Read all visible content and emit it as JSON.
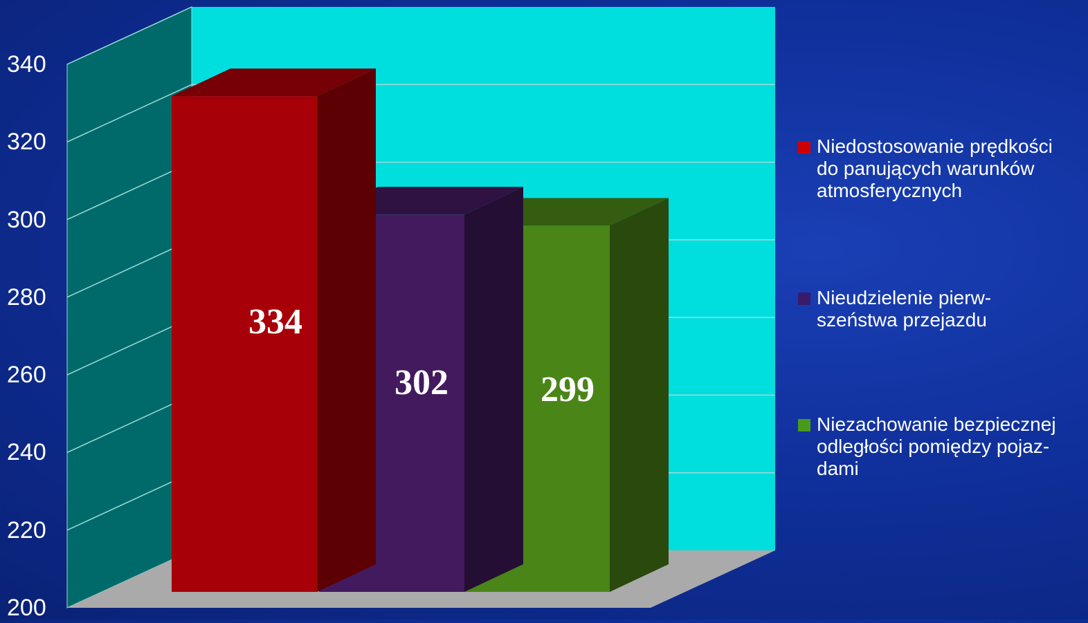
{
  "chart_data": {
    "type": "bar",
    "categories": [
      "Niedostosowanie prędkości do panujących warunków atmosferycznych",
      "Nieudzielenie pierw-szeństwa przejazdu",
      "Niezachowanie bezpiecznej odległości pomiędzy pojaz-dami"
    ],
    "values": [
      334,
      302,
      299
    ],
    "data_labels": [
      "334",
      "302",
      "299"
    ],
    "colors": [
      "#a80008",
      "#431a5e",
      "#4a8518"
    ],
    "ylim": [
      200,
      340
    ],
    "yticks": [
      "200",
      "220",
      "240",
      "260",
      "280",
      "300",
      "320",
      "340"
    ],
    "grid": true,
    "legend": {
      "position": "right",
      "items": [
        {
          "lines": [
            "Niedostosowanie prędkości",
            "do panujących warunków",
            "atmosferycznych"
          ],
          "color": "#cc0000"
        },
        {
          "lines": [
            "Nieudzielenie pierw-",
            "szeństwa przejazdu"
          ],
          "color": "#3a1a6a"
        },
        {
          "lines": [
            "Niezachowanie bezpiecznej",
            "odległości pomiędzy pojaz-",
            "dami"
          ],
          "color": "#4a9a1a"
        }
      ]
    },
    "colors_scheme": {
      "back_wall": "#00dede",
      "side_wall": "#006a6a",
      "floor": "#aaaaaa",
      "grid_line": "#9fdada"
    }
  }
}
